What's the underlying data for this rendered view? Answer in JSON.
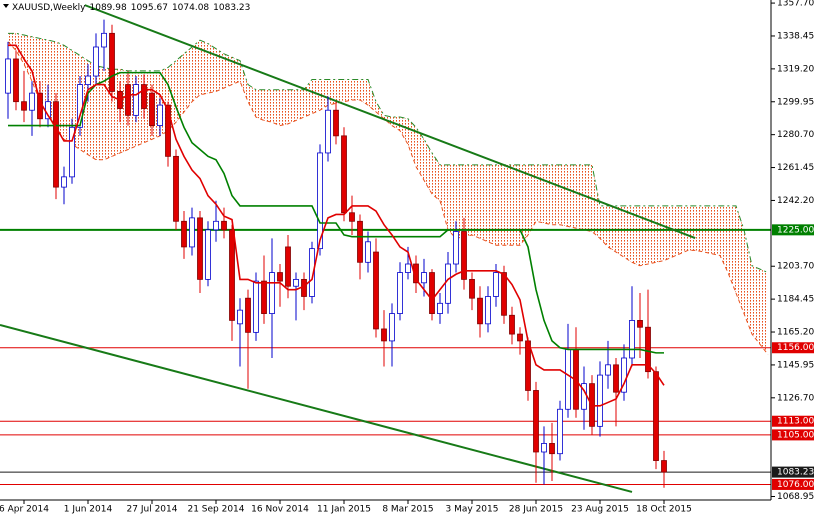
{
  "chart_data": {
    "type": "candlestick",
    "symbol": "XAUUSD,Weekly",
    "categories": [
      null,
      null,
      "6 Apr 2014",
      null,
      null,
      null,
      null,
      null,
      null,
      null,
      "1 Jun 2014",
      null,
      null,
      null,
      null,
      null,
      null,
      null,
      "27 Jul 2014",
      null,
      null,
      null,
      null,
      null,
      null,
      null,
      "21 Sep 2014",
      null,
      null,
      null,
      null,
      null,
      null,
      null,
      "16 Nov 2014",
      null,
      null,
      null,
      null,
      null,
      null,
      null,
      "11 Jan 2015",
      null,
      null,
      null,
      null,
      null,
      null,
      null,
      "8 Mar 2015",
      null,
      null,
      null,
      null,
      null,
      null,
      null,
      "3 May 2015",
      null,
      null,
      null,
      null,
      null,
      null,
      null,
      "28 Jun 2015",
      null,
      null,
      null,
      null,
      null,
      null,
      null,
      "23 Aug 2015",
      null,
      null,
      null,
      null,
      null,
      null,
      null,
      "18 Oct 2015"
    ],
    "open": [
      1305,
      1325,
      1300,
      1295,
      1305,
      1290,
      1300,
      1250,
      1256,
      1285,
      1310,
      1315,
      1332,
      1340,
      1306,
      1310,
      1292,
      1310,
      1305,
      1286,
      1298,
      1268,
      1230,
      1215,
      1232,
      1196,
      1225,
      1230,
      1225,
      1170,
      1185,
      1165,
      1195,
      1176,
      1200,
      1215,
      1192,
      1196,
      1186,
      1214,
      1270,
      1295,
      1280,
      1235,
      1230,
      1206,
      1212,
      1167,
      1160,
      1176,
      1200,
      1205,
      1194,
      1200,
      1176,
      1182,
      1205,
      1224,
      1196,
      1185,
      1170,
      1186,
      1200,
      1175,
      1164,
      1160,
      1131,
      1095,
      1100,
      1094,
      1120,
      1155,
      1120,
      1135,
      1110,
      1140,
      1146,
      1130,
      1150,
      1172,
      1168,
      1142,
      1089.98
    ],
    "high": [
      1335,
      1330,
      1318,
      1312,
      1312,
      1310,
      1305,
      1262,
      1290,
      1315,
      1322,
      1340,
      1348,
      1345,
      1312,
      1318,
      1315,
      1316,
      1310,
      1302,
      1300,
      1272,
      1236,
      1238,
      1236,
      1230,
      1242,
      1238,
      1228,
      1185,
      1190,
      1200,
      1210,
      1220,
      1205,
      1222,
      1200,
      1200,
      1218,
      1275,
      1303,
      1300,
      1285,
      1245,
      1234,
      1224,
      1220,
      1178,
      1182,
      1206,
      1215,
      1210,
      1208,
      1202,
      1188,
      1212,
      1230,
      1232,
      1200,
      1192,
      1192,
      1205,
      1204,
      1180,
      1168,
      1162,
      1136,
      1110,
      1112,
      1125,
      1170,
      1168,
      1145,
      1140,
      1148,
      1160,
      1150,
      1158,
      1192,
      1188,
      1190,
      1145,
      1095.67
    ],
    "low": [
      1290,
      1295,
      1288,
      1280,
      1285,
      1285,
      1243,
      1240,
      1252,
      1280,
      1300,
      1310,
      1318,
      1300,
      1288,
      1286,
      1288,
      1290,
      1280,
      1280,
      1262,
      1225,
      1208,
      1210,
      1188,
      1192,
      1218,
      1220,
      1160,
      1145,
      1132,
      1160,
      1170,
      1150,
      1180,
      1185,
      1172,
      1178,
      1182,
      1210,
      1265,
      1275,
      1230,
      1222,
      1196,
      1200,
      1162,
      1145,
      1145,
      1172,
      1196,
      1188,
      1186,
      1172,
      1170,
      1176,
      1200,
      1190,
      1178,
      1162,
      1165,
      1180,
      1170,
      1158,
      1152,
      1125,
      1077,
      1076,
      1078,
      1090,
      1115,
      1115,
      1108,
      1105,
      1104,
      1132,
      1110,
      1125,
      1145,
      1150,
      1138,
      1085,
      1074.08
    ],
    "close": [
      1325,
      1300,
      1295,
      1305,
      1290,
      1300,
      1250,
      1256,
      1285,
      1310,
      1315,
      1332,
      1340,
      1306,
      1296,
      1292,
      1310,
      1296,
      1286,
      1298,
      1268,
      1230,
      1215,
      1232,
      1196,
      1225,
      1230,
      1225,
      1172,
      1178,
      1165,
      1195,
      1176,
      1200,
      1195,
      1192,
      1196,
      1186,
      1214,
      1270,
      1295,
      1280,
      1235,
      1230,
      1206,
      1218,
      1167,
      1160,
      1176,
      1200,
      1205,
      1194,
      1200,
      1176,
      1182,
      1205,
      1224,
      1196,
      1185,
      1170,
      1186,
      1200,
      1175,
      1164,
      1160,
      1131,
      1095,
      1100,
      1094,
      1120,
      1155,
      1120,
      1135,
      1110,
      1140,
      1146,
      1130,
      1150,
      1172,
      1168,
      1142,
      1089.98,
      1083.23
    ],
    "bull_color": "#0000cd",
    "bear_color": "#e00000",
    "ylim": [
      1066.9,
      1359.5
    ],
    "yticks": [
      {
        "value": 1357.7,
        "label": "1357.70"
      },
      {
        "value": 1338.45,
        "label": "1338.45"
      },
      {
        "value": 1319.2,
        "label": "1319.20"
      },
      {
        "value": 1299.95,
        "label": "1299.95"
      },
      {
        "value": 1280.7,
        "label": "1280.70"
      },
      {
        "value": 1261.45,
        "label": "1261.45"
      },
      {
        "value": 1242.2,
        "label": "1242.20"
      },
      {
        "value": 1203.7,
        "label": "1203.70"
      },
      {
        "value": 1184.45,
        "label": "1184.45"
      },
      {
        "value": 1165.2,
        "label": "1165.20"
      },
      {
        "value": 1145.95,
        "label": "1145.95"
      },
      {
        "value": 1126.7,
        "label": "1126.70"
      },
      {
        "value": 1068.95,
        "label": "1068.95"
      }
    ],
    "tenkan": {
      "color": "#e00000",
      "values": [
        1333,
        1333,
        1325,
        1318,
        1300,
        1292,
        1285,
        1277,
        1277,
        1292,
        1307,
        1310,
        1310,
        1303,
        1301,
        1304,
        1304,
        1307,
        1307,
        1304,
        1295,
        1278,
        1268,
        1260,
        1255,
        1245,
        1240,
        1233,
        1231,
        1196,
        1196,
        1194,
        1194,
        1194,
        1194,
        1190,
        1190,
        1192,
        1196,
        1219,
        1232,
        1234,
        1234,
        1239,
        1239,
        1239,
        1236,
        1228,
        1222,
        1215,
        1212,
        1196,
        1190,
        1184,
        1190,
        1196,
        1199,
        1201,
        1201,
        1201,
        1201,
        1201,
        1199,
        1193,
        1184,
        1160,
        1146,
        1143,
        1143,
        1143,
        1140,
        1137,
        1131,
        1122,
        1122,
        1124,
        1126,
        1135,
        1146,
        1146,
        1146,
        1141,
        1134
      ]
    },
    "kijun": {
      "color": "#008000",
      "values": [
        1286,
        1286,
        1286,
        1286,
        1286,
        1286,
        1286,
        1286,
        1286,
        1286,
        1305,
        1310,
        1312,
        1315,
        1317,
        1317,
        1317,
        1317,
        1317,
        1317,
        1310,
        1297,
        1285,
        1276,
        1272,
        1268,
        1266,
        1258,
        1245,
        1239,
        1239,
        1239,
        1239,
        1239,
        1239,
        1239,
        1239,
        1239,
        1239,
        1229,
        1229,
        1229,
        1222,
        1221,
        1221,
        1221,
        1221,
        1221,
        1221,
        1221,
        1221,
        1221,
        1221,
        1221,
        1221,
        1225,
        1225,
        1225,
        1225,
        1225,
        1225,
        1225,
        1225,
        1225,
        1225,
        1215,
        1190,
        1172,
        1160,
        1156,
        1155,
        1155,
        1155,
        1155,
        1155,
        1155,
        1155,
        1155,
        1155,
        1155,
        1154,
        1153,
        1153
      ]
    },
    "cloud": {
      "color": "#e8501c",
      "span_b_color": "#2a8a2a",
      "span_a": [
        1335,
        1330,
        1322,
        1312,
        1300,
        1292,
        1284,
        1278,
        1275,
        1272,
        1269,
        1266,
        1266,
        1268,
        1270,
        1272,
        1274,
        1276,
        1278,
        1280,
        1283,
        1288,
        1294,
        1300,
        1304,
        1305,
        1306,
        1308,
        1310,
        1312,
        1300,
        1291,
        1289,
        1288,
        1286,
        1287,
        1289,
        1291,
        1293,
        1295,
        1298,
        1299,
        1300,
        1301,
        1301,
        1298,
        1294,
        1290,
        1286,
        1283,
        1275,
        1262,
        1254,
        1246,
        1242,
        1225,
        1220,
        1221,
        1222,
        1220,
        1218,
        1216,
        1216,
        1216,
        1216,
        1222,
        1230,
        1229,
        1228,
        1228,
        1227,
        1226,
        1225,
        1224,
        1220,
        1215,
        1212,
        1209,
        1206,
        1204,
        1205,
        1206,
        1207,
        1209,
        1211,
        1213,
        1213,
        1212,
        1211,
        1210,
        1200,
        1188,
        1176,
        1164,
        1158,
        1152
      ],
      "span_b": [
        1340,
        1340,
        1339,
        1338,
        1337,
        1336,
        1335,
        1333,
        1330,
        1327,
        1324,
        1321,
        1320,
        1319,
        1319,
        1318,
        1318,
        1318,
        1318,
        1318,
        1320,
        1324,
        1328,
        1332,
        1336,
        1334,
        1331,
        1328,
        1326,
        1324,
        1310,
        1307,
        1307,
        1307,
        1307,
        1307,
        1307,
        1307,
        1313,
        1313,
        1313,
        1313,
        1313,
        1313,
        1313,
        1313,
        1300,
        1292,
        1291,
        1291,
        1290,
        1285,
        1278,
        1270,
        1263,
        1263,
        1263,
        1263,
        1263,
        1263,
        1263,
        1263,
        1263,
        1263,
        1263,
        1263,
        1263,
        1263,
        1263,
        1263,
        1263,
        1263,
        1263,
        1263,
        1239,
        1239,
        1239,
        1239,
        1239,
        1239,
        1239,
        1239,
        1239,
        1239,
        1239,
        1239,
        1239,
        1239,
        1239,
        1239,
        1239,
        1239,
        1225,
        1204,
        1202,
        1200
      ]
    },
    "levels": [
      {
        "value": 1225,
        "label": "1225.00",
        "color": "#008000"
      },
      {
        "value": 1156,
        "label": "1156.00",
        "color": "#e00000"
      },
      {
        "value": 1113,
        "label": "1113.00",
        "color": "#e00000"
      },
      {
        "value": 1105,
        "label": "1105.00",
        "color": "#e00000"
      },
      {
        "value": 1083.23,
        "color": "#1a1a1a"
      },
      {
        "value": 1076,
        "label": "1076.00",
        "color": "#e00000"
      }
    ],
    "trendlines": [
      {
        "color": "#177a17",
        "x": [
          9.6,
          85.9
        ],
        "y": [
          1356.5,
          1220.2
        ]
      },
      {
        "color": "#177a17",
        "x": [
          -1,
          78
        ],
        "y": [
          1169.3,
          1071.6
        ]
      }
    ]
  }
}
